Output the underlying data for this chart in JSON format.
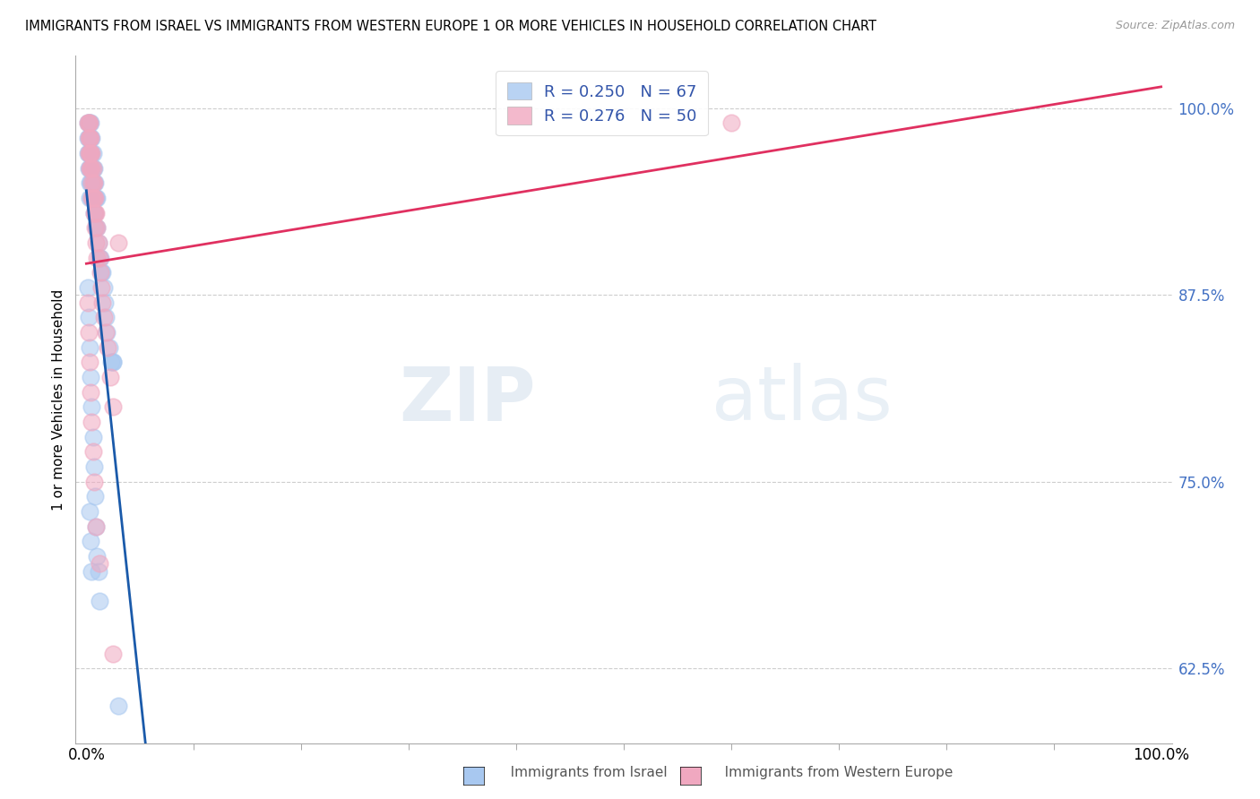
{
  "title": "IMMIGRANTS FROM ISRAEL VS IMMIGRANTS FROM WESTERN EUROPE 1 OR MORE VEHICLES IN HOUSEHOLD CORRELATION CHART",
  "source": "Source: ZipAtlas.com",
  "ylabel": "1 or more Vehicles in Household",
  "y_ticks": [
    0.625,
    0.75,
    0.875,
    1.0
  ],
  "y_tick_labels": [
    "62.5%",
    "75.0%",
    "87.5%",
    "100.0%"
  ],
  "legend_israel_R": 0.25,
  "legend_israel_N": 67,
  "legend_western_R": 0.276,
  "legend_western_N": 50,
  "israel_color": "#a8c8f0",
  "western_color": "#f0a8c0",
  "israel_line_color": "#1a5aaa",
  "western_line_color": "#e03060",
  "watermark_zip": "ZIP",
  "watermark_atlas": "atlas",
  "israel_x": [
    0.001,
    0.001,
    0.001,
    0.002,
    0.002,
    0.002,
    0.002,
    0.003,
    0.003,
    0.003,
    0.003,
    0.003,
    0.003,
    0.004,
    0.004,
    0.004,
    0.004,
    0.004,
    0.005,
    0.005,
    0.005,
    0.005,
    0.005,
    0.006,
    0.006,
    0.006,
    0.006,
    0.007,
    0.007,
    0.007,
    0.007,
    0.008,
    0.008,
    0.008,
    0.009,
    0.009,
    0.01,
    0.01,
    0.011,
    0.012,
    0.013,
    0.014,
    0.015,
    0.016,
    0.017,
    0.018,
    0.019,
    0.021,
    0.023,
    0.025,
    0.001,
    0.002,
    0.003,
    0.004,
    0.005,
    0.006,
    0.007,
    0.008,
    0.009,
    0.01,
    0.011,
    0.012,
    0.003,
    0.004,
    0.005,
    0.025,
    0.03
  ],
  "israel_y": [
    0.99,
    0.98,
    0.97,
    0.99,
    0.98,
    0.97,
    0.96,
    0.99,
    0.98,
    0.97,
    0.96,
    0.95,
    0.94,
    0.99,
    0.98,
    0.97,
    0.96,
    0.95,
    0.98,
    0.97,
    0.96,
    0.95,
    0.94,
    0.97,
    0.96,
    0.95,
    0.94,
    0.96,
    0.95,
    0.94,
    0.93,
    0.95,
    0.94,
    0.93,
    0.94,
    0.92,
    0.94,
    0.92,
    0.91,
    0.9,
    0.9,
    0.89,
    0.89,
    0.88,
    0.87,
    0.86,
    0.85,
    0.84,
    0.83,
    0.83,
    0.88,
    0.86,
    0.84,
    0.82,
    0.8,
    0.78,
    0.76,
    0.74,
    0.72,
    0.7,
    0.69,
    0.67,
    0.73,
    0.71,
    0.69,
    0.83,
    0.6
  ],
  "western_x": [
    0.001,
    0.002,
    0.002,
    0.002,
    0.003,
    0.003,
    0.003,
    0.003,
    0.004,
    0.004,
    0.004,
    0.005,
    0.005,
    0.005,
    0.005,
    0.006,
    0.006,
    0.006,
    0.007,
    0.007,
    0.007,
    0.008,
    0.008,
    0.008,
    0.009,
    0.009,
    0.01,
    0.01,
    0.011,
    0.012,
    0.013,
    0.014,
    0.015,
    0.016,
    0.018,
    0.02,
    0.022,
    0.025,
    0.001,
    0.002,
    0.003,
    0.004,
    0.005,
    0.006,
    0.007,
    0.009,
    0.012,
    0.025,
    0.03,
    0.6
  ],
  "western_y": [
    0.99,
    0.99,
    0.98,
    0.97,
    0.99,
    0.98,
    0.97,
    0.96,
    0.98,
    0.97,
    0.96,
    0.97,
    0.96,
    0.95,
    0.94,
    0.96,
    0.95,
    0.94,
    0.95,
    0.94,
    0.93,
    0.94,
    0.93,
    0.92,
    0.93,
    0.91,
    0.92,
    0.9,
    0.91,
    0.9,
    0.89,
    0.88,
    0.87,
    0.86,
    0.85,
    0.84,
    0.82,
    0.8,
    0.87,
    0.85,
    0.83,
    0.81,
    0.79,
    0.77,
    0.75,
    0.72,
    0.695,
    0.635,
    0.91,
    0.99
  ]
}
